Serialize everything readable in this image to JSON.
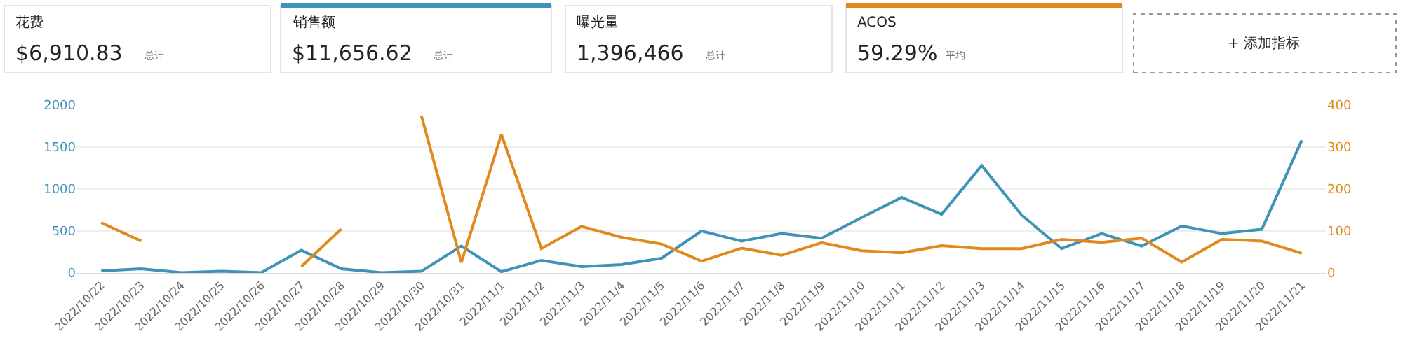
{
  "chart_data": {
    "type": "line",
    "categories": [
      "2022/10/22",
      "2022/10/23",
      "2022/10/24",
      "2022/10/25",
      "2022/10/26",
      "2022/10/27",
      "2022/10/28",
      "2022/10/29",
      "2022/10/30",
      "2022/10/31",
      "2022/11/1",
      "2022/11/2",
      "2022/11/3",
      "2022/11/4",
      "2022/11/5",
      "2022/11/6",
      "2022/11/7",
      "2022/11/8",
      "2022/11/9",
      "2022/11/10",
      "2022/11/11",
      "2022/11/12",
      "2022/11/13",
      "2022/11/14",
      "2022/11/15",
      "2022/11/16",
      "2022/11/17",
      "2022/11/18",
      "2022/11/19",
      "2022/11/20",
      "2022/11/21"
    ],
    "series": [
      {
        "color": "#3f93b8",
        "values": [
          25,
          50,
          5,
          20,
          5,
          270,
          50,
          5,
          20,
          320,
          15,
          150,
          75,
          100,
          175,
          500,
          380,
          470,
          415,
          660,
          900,
          700,
          1280,
          690,
          290,
          470,
          320,
          560,
          470,
          520,
          1580
        ]
      },
      {
        "color": "#e08a1e",
        "axis": "y2",
        "values": [
          120,
          76,
          null,
          null,
          null,
          15,
          105,
          null,
          375,
          25,
          330,
          58,
          111,
          85,
          69,
          28,
          59,
          42,
          72,
          53,
          48,
          65,
          58,
          58,
          80,
          73,
          83,
          26,
          80,
          76,
          47
        ]
      }
    ],
    "ylim": [
      0,
      2000
    ],
    "yticks": [
      0,
      500,
      1000,
      1500,
      2000
    ],
    "y2lim": [
      0,
      400
    ],
    "y2ticks": [
      0,
      100,
      200,
      300,
      400
    ],
    "grid": "y",
    "marker": "none",
    "line_style": "solid",
    "annotations": [
      "花费",
      "$6,910.83",
      "总计",
      "销售额",
      "$11,656.62",
      "总计",
      "曝光量",
      "1,396,466",
      "总计",
      "ACOS",
      "59.29%",
      "平均",
      "+ 添加指标"
    ]
  }
}
